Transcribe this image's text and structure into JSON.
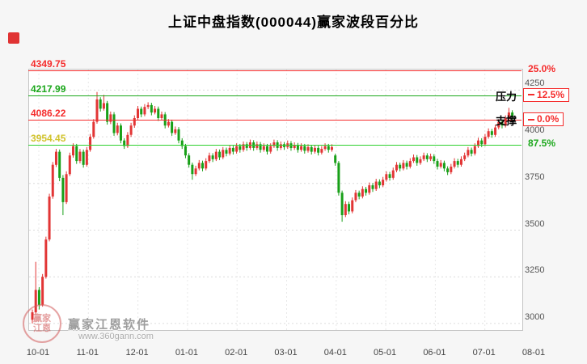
{
  "title": "上证中盘指数(000044)赢家波段百分比",
  "colors": {
    "up": "#e23535",
    "down": "#18a018",
    "red_line": "#f52c2c",
    "green_line": "#1ca81c",
    "bright_green_line": "#2ed02e",
    "yellow_label": "#d2c42e",
    "grid": "#dcdcdc",
    "plot_bg": "#ffffff"
  },
  "ref_lines": [
    {
      "value": 4349.75,
      "label": "4349.75",
      "label_color": "#f52c2c",
      "line_color": "#f52c2c",
      "right_label": "25.0%",
      "right_color": "#f52c2c",
      "boxed": false,
      "annotation": ""
    },
    {
      "value": 4217.99,
      "label": "4217.99",
      "label_color": "#1ca81c",
      "line_color": "#1ca81c",
      "right_label": "12.5%",
      "right_color": "#f52c2c",
      "boxed": true,
      "annotation": "压力"
    },
    {
      "value": 4086.22,
      "label": "4086.22",
      "label_color": "#f52c2c",
      "line_color": "#f52c2c",
      "right_label": "0.0%",
      "right_color": "#f52c2c",
      "boxed": true,
      "annotation": "支撑"
    },
    {
      "value": 3954.45,
      "label": "3954.45",
      "label_color": "#d2c42e",
      "line_color": "#2ed02e",
      "right_label": "87.5%",
      "right_color": "#1ca81c",
      "boxed": false,
      "annotation": ""
    }
  ],
  "y_axis": {
    "ticks": [
      4250,
      4000,
      3750,
      3500,
      3250,
      3000
    ]
  },
  "x_axis": {
    "ticks": [
      "10-01",
      "11-01",
      "12-01",
      "01-01",
      "02-01",
      "03-01",
      "04-01",
      "05-01",
      "06-01",
      "07-01",
      "08-01"
    ]
  },
  "watermark": {
    "brand": "赢家江恩软件",
    "url": "www.360gann.com",
    "seal": "赢家江恩"
  },
  "chart_data": {
    "type": "candlestick",
    "title": "上证中盘指数(000044)赢家波段百分比",
    "ylim": [
      2965,
      4360
    ],
    "y_ticks": [
      4250,
      4000,
      3750,
      3500,
      3250,
      3000
    ],
    "x_tick_labels": [
      "10-01",
      "11-01",
      "12-01",
      "01-01",
      "02-01",
      "03-01",
      "04-01",
      "05-01",
      "06-01",
      "07-01",
      "08-01"
    ],
    "reference_levels": [
      {
        "percent": "25.0%",
        "price": 4349.75
      },
      {
        "percent": "12.5%",
        "price": 4217.99,
        "role": "压力"
      },
      {
        "percent": "0.0%",
        "price": 4086.22,
        "role": "支撑"
      },
      {
        "percent": "87.5%",
        "price": 3954.45
      }
    ],
    "up_color": "#e23535",
    "down_color": "#18a018",
    "candles_ohlc": [
      [
        3020,
        3075,
        3000,
        3060
      ],
      [
        3060,
        3330,
        3050,
        3180
      ],
      [
        3180,
        3195,
        3075,
        3100
      ],
      [
        3100,
        3265,
        3090,
        3250
      ],
      [
        3250,
        3465,
        3240,
        3450
      ],
      [
        3450,
        3695,
        3440,
        3680
      ],
      [
        3680,
        3865,
        3668,
        3850
      ],
      [
        3850,
        3935,
        3838,
        3920
      ],
      [
        3920,
        3932,
        3762,
        3780
      ],
      [
        3780,
        3795,
        3580,
        3650
      ],
      [
        3650,
        3815,
        3640,
        3800
      ],
      [
        3800,
        3915,
        3790,
        3900
      ],
      [
        3900,
        3965,
        3888,
        3950
      ],
      [
        3950,
        3962,
        3855,
        3870
      ],
      [
        3870,
        3935,
        3858,
        3920
      ],
      [
        3920,
        3932,
        3835,
        3850
      ],
      [
        3850,
        3945,
        3840,
        3930
      ],
      [
        3930,
        4015,
        3920,
        4000
      ],
      [
        4000,
        4095,
        3990,
        4080
      ],
      [
        4080,
        4240,
        4070,
        4200
      ],
      [
        4200,
        4212,
        4135,
        4150
      ],
      [
        4150,
        4225,
        4140,
        4180
      ],
      [
        4180,
        4192,
        4065,
        4080
      ],
      [
        4080,
        4135,
        4068,
        4120
      ],
      [
        4120,
        4132,
        4005,
        4020
      ],
      [
        4020,
        4075,
        4008,
        4060
      ],
      [
        4060,
        4072,
        3965,
        3980
      ],
      [
        3980,
        3992,
        3935,
        3950
      ],
      [
        3950,
        4025,
        3940,
        4010
      ],
      [
        4010,
        4075,
        4000,
        4060
      ],
      [
        4060,
        4115,
        4048,
        4100
      ],
      [
        4100,
        4165,
        4090,
        4150
      ],
      [
        4150,
        4162,
        4105,
        4120
      ],
      [
        4120,
        4175,
        4110,
        4160
      ],
      [
        4160,
        4185,
        4148,
        4170
      ],
      [
        4170,
        4182,
        4115,
        4130
      ],
      [
        4130,
        4165,
        4120,
        4150
      ],
      [
        4150,
        4162,
        4085,
        4100
      ],
      [
        4100,
        4135,
        4090,
        4120
      ],
      [
        4120,
        4132,
        4045,
        4060
      ],
      [
        4060,
        4095,
        4050,
        4080
      ],
      [
        4080,
        4092,
        4005,
        4020
      ],
      [
        4020,
        4055,
        4010,
        4040
      ],
      [
        4040,
        4052,
        3965,
        3980
      ],
      [
        3980,
        3992,
        3935,
        3950
      ],
      [
        3950,
        3962,
        3885,
        3900
      ],
      [
        3900,
        3912,
        3835,
        3850
      ],
      [
        3850,
        3862,
        3770,
        3800
      ],
      [
        3800,
        3845,
        3790,
        3830
      ],
      [
        3830,
        3875,
        3820,
        3860
      ],
      [
        3860,
        3872,
        3815,
        3830
      ],
      [
        3830,
        3885,
        3820,
        3870
      ],
      [
        3870,
        3915,
        3860,
        3900
      ],
      [
        3900,
        3912,
        3865,
        3880
      ],
      [
        3880,
        3935,
        3870,
        3920
      ],
      [
        3920,
        3932,
        3875,
        3890
      ],
      [
        3890,
        3945,
        3880,
        3930
      ],
      [
        3930,
        3942,
        3895,
        3910
      ],
      [
        3910,
        3955,
        3900,
        3940
      ],
      [
        3940,
        3952,
        3905,
        3920
      ],
      [
        3920,
        3965,
        3910,
        3950
      ],
      [
        3950,
        3962,
        3915,
        3930
      ],
      [
        3930,
        3975,
        3920,
        3960
      ],
      [
        3960,
        3972,
        3925,
        3940
      ],
      [
        3940,
        3985,
        3930,
        3970
      ],
      [
        3970,
        3982,
        3925,
        3940
      ],
      [
        3940,
        3975,
        3930,
        3960
      ],
      [
        3960,
        3972,
        3915,
        3930
      ],
      [
        3930,
        3965,
        3920,
        3950
      ],
      [
        3950,
        3962,
        3905,
        3920
      ],
      [
        3920,
        3965,
        3910,
        3950
      ],
      [
        3950,
        3985,
        3940,
        3970
      ],
      [
        3970,
        3982,
        3925,
        3940
      ],
      [
        3940,
        3975,
        3930,
        3960
      ],
      [
        3960,
        3972,
        3930,
        3945
      ],
      [
        3945,
        3980,
        3935,
        3965
      ],
      [
        3965,
        3977,
        3925,
        3940
      ],
      [
        3940,
        3970,
        3930,
        3955
      ],
      [
        3955,
        3967,
        3915,
        3930
      ],
      [
        3930,
        3965,
        3920,
        3950
      ],
      [
        3950,
        3962,
        3910,
        3925
      ],
      [
        3925,
        3960,
        3915,
        3945
      ],
      [
        3945,
        3957,
        3905,
        3920
      ],
      [
        3920,
        3955,
        3910,
        3940
      ],
      [
        3940,
        3952,
        3900,
        3915
      ],
      [
        3915,
        3950,
        3905,
        3935
      ],
      [
        3935,
        3965,
        3925,
        3950
      ],
      [
        3950,
        3962,
        3915,
        3930
      ],
      [
        3930,
        3960,
        3920,
        3945
      ],
      [
        3900,
        3910,
        3845,
        3860
      ],
      [
        3860,
        3870,
        3685,
        3700
      ],
      [
        3700,
        3712,
        3545,
        3580
      ],
      [
        3580,
        3655,
        3570,
        3640
      ],
      [
        3640,
        3652,
        3585,
        3600
      ],
      [
        3600,
        3675,
        3590,
        3660
      ],
      [
        3660,
        3715,
        3650,
        3700
      ],
      [
        3700,
        3712,
        3665,
        3680
      ],
      [
        3680,
        3735,
        3670,
        3720
      ],
      [
        3720,
        3732,
        3685,
        3700
      ],
      [
        3700,
        3755,
        3690,
        3740
      ],
      [
        3740,
        3752,
        3705,
        3720
      ],
      [
        3720,
        3775,
        3710,
        3760
      ],
      [
        3760,
        3772,
        3725,
        3740
      ],
      [
        3740,
        3785,
        3730,
        3770
      ],
      [
        3770,
        3815,
        3760,
        3800
      ],
      [
        3800,
        3812,
        3765,
        3780
      ],
      [
        3780,
        3835,
        3770,
        3820
      ],
      [
        3820,
        3865,
        3810,
        3850
      ],
      [
        3850,
        3862,
        3815,
        3830
      ],
      [
        3830,
        3875,
        3820,
        3860
      ],
      [
        3860,
        3872,
        3825,
        3840
      ],
      [
        3840,
        3885,
        3830,
        3870
      ],
      [
        3870,
        3905,
        3860,
        3890
      ],
      [
        3890,
        3902,
        3845,
        3860
      ],
      [
        3860,
        3895,
        3850,
        3880
      ],
      [
        3880,
        3915,
        3870,
        3900
      ],
      [
        3900,
        3912,
        3865,
        3880
      ],
      [
        3880,
        3910,
        3870,
        3895
      ],
      [
        3895,
        3907,
        3855,
        3870
      ],
      [
        3870,
        3882,
        3825,
        3840
      ],
      [
        3840,
        3875,
        3830,
        3860
      ],
      [
        3860,
        3872,
        3815,
        3830
      ],
      [
        3830,
        3842,
        3795,
        3810
      ],
      [
        3810,
        3855,
        3800,
        3840
      ],
      [
        3840,
        3885,
        3830,
        3870
      ],
      [
        3870,
        3882,
        3835,
        3850
      ],
      [
        3850,
        3895,
        3840,
        3880
      ],
      [
        3880,
        3915,
        3870,
        3900
      ],
      [
        3900,
        3945,
        3890,
        3930
      ],
      [
        3930,
        3942,
        3895,
        3910
      ],
      [
        3910,
        3965,
        3900,
        3950
      ],
      [
        3950,
        3995,
        3940,
        3980
      ],
      [
        3980,
        3992,
        3945,
        3960
      ],
      [
        3960,
        4015,
        3950,
        4000
      ],
      [
        4000,
        4045,
        3990,
        4030
      ],
      [
        4030,
        4042,
        3995,
        4010
      ],
      [
        4010,
        4065,
        4000,
        4050
      ],
      [
        4050,
        4095,
        4040,
        4080
      ],
      [
        4080,
        4092,
        4045,
        4060
      ],
      [
        4060,
        4115,
        4050,
        4100
      ],
      [
        4100,
        4155,
        4090,
        4130
      ],
      [
        4130,
        4142,
        4085,
        4110
      ]
    ]
  }
}
